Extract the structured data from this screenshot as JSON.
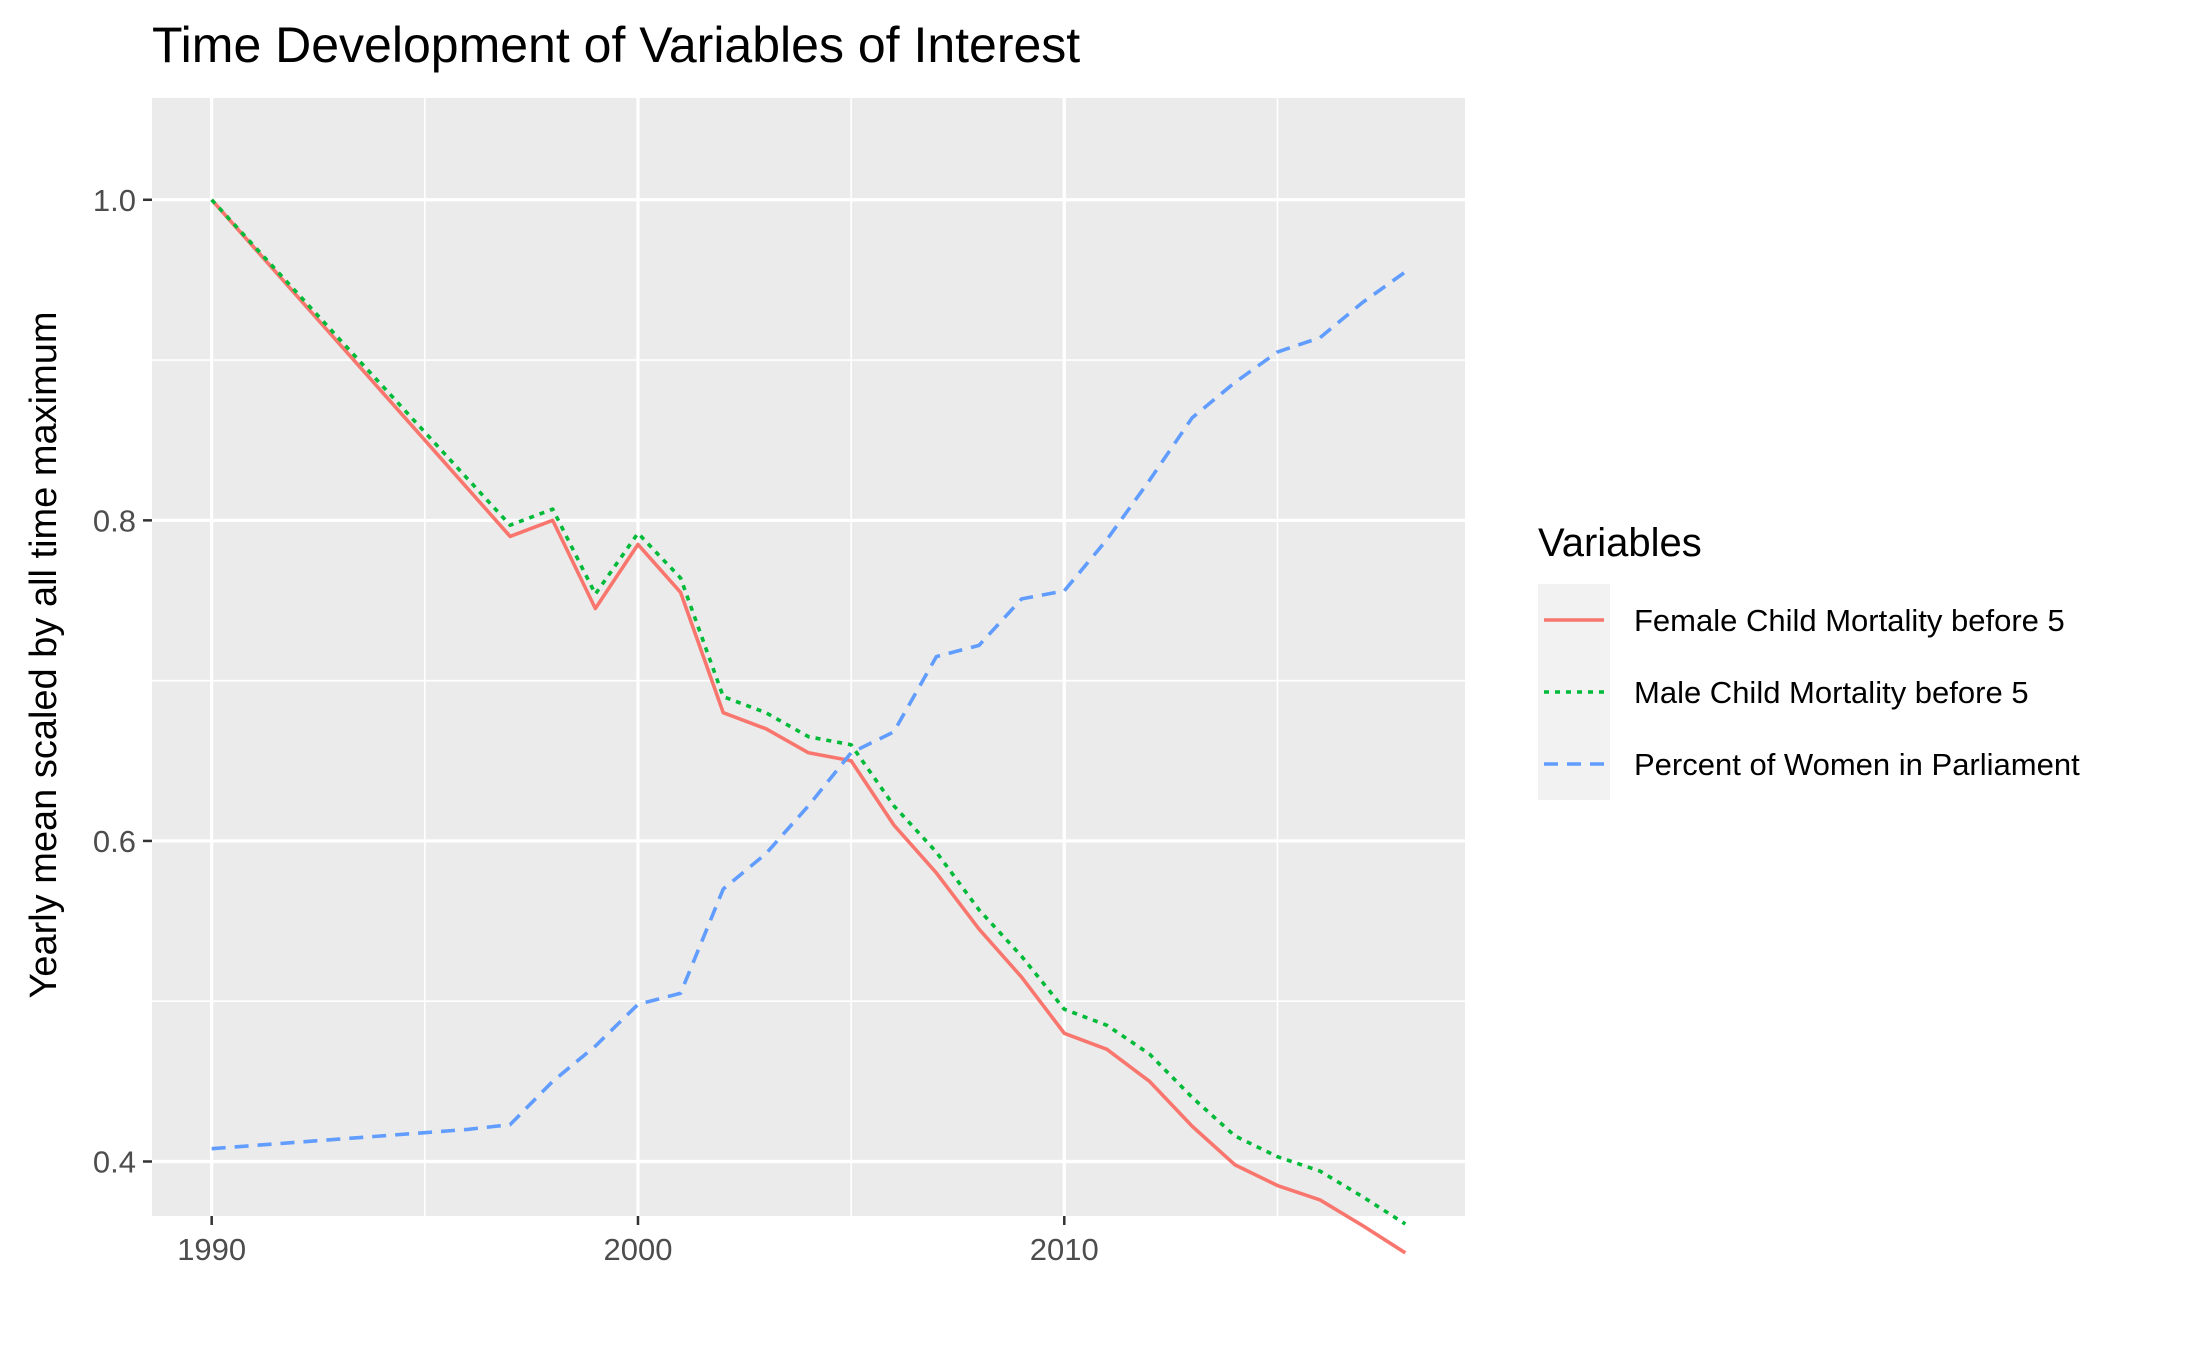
{
  "chart_data": {
    "type": "line",
    "title": "Time Development of Variables of Interest",
    "xlabel": "",
    "ylabel": "Yearly mean scaled by all time maximum",
    "xlim": [
      1988.6,
      2019.4
    ],
    "ylim": [
      0.366,
      1.0635
    ],
    "x_ticks": [
      1990,
      2000,
      2010
    ],
    "x_tick_labels": [
      "1990",
      "2000",
      "2010"
    ],
    "x_minor_ticks": [
      1995,
      2005,
      2015
    ],
    "y_ticks": [
      0.4,
      0.6,
      0.8,
      1.0
    ],
    "y_tick_labels": [
      "0.4",
      "0.6",
      "0.8",
      "1.0"
    ],
    "y_minor_ticks": [
      0.5,
      0.7,
      0.9
    ],
    "grid": true,
    "panel_background": "#ebebeb",
    "legend": {
      "title": "Variables",
      "position": "right"
    },
    "x": [
      1990,
      1991,
      1992,
      1993,
      1994,
      1995,
      1996,
      1997,
      1998,
      1999,
      2000,
      2001,
      2002,
      2003,
      2004,
      2005,
      2006,
      2007,
      2008,
      2009,
      2010,
      2011,
      2012,
      2013,
      2014,
      2015,
      2016,
      2017,
      2018
    ],
    "series": [
      {
        "name": "Female Child Mortality before 5",
        "color": "#f8766d",
        "dash": "solid",
        "values": [
          1.0,
          0.97,
          0.94,
          0.91,
          0.88,
          0.85,
          0.82,
          0.79,
          0.8,
          0.745,
          0.785,
          0.755,
          0.68,
          0.67,
          0.655,
          0.65,
          0.61,
          0.58,
          0.545,
          0.515,
          0.48,
          0.47,
          0.45,
          0.422,
          0.398,
          0.385,
          0.376,
          0.36,
          0.343
        ]
      },
      {
        "name": "Male Child Mortality before 5",
        "color": "#00ba38",
        "dash": "dotted",
        "values": [
          1.0,
          0.971,
          0.942,
          0.913,
          0.884,
          0.855,
          0.826,
          0.797,
          0.807,
          0.754,
          0.792,
          0.764,
          0.69,
          0.68,
          0.665,
          0.66,
          0.622,
          0.593,
          0.557,
          0.528,
          0.495,
          0.485,
          0.467,
          0.44,
          0.416,
          0.403,
          0.394,
          0.378,
          0.361
        ]
      },
      {
        "name": "Percent of Women in Parliament",
        "color": "#619cff",
        "dash": "dashed",
        "values": [
          0.408,
          0.41,
          0.412,
          0.414,
          0.416,
          0.418,
          0.42,
          0.423,
          0.45,
          0.472,
          0.498,
          0.505,
          0.57,
          0.592,
          0.622,
          0.655,
          0.668,
          0.715,
          0.722,
          0.751,
          0.756,
          0.788,
          0.825,
          0.864,
          0.886,
          0.905,
          0.914,
          0.936,
          0.955
        ]
      }
    ]
  }
}
